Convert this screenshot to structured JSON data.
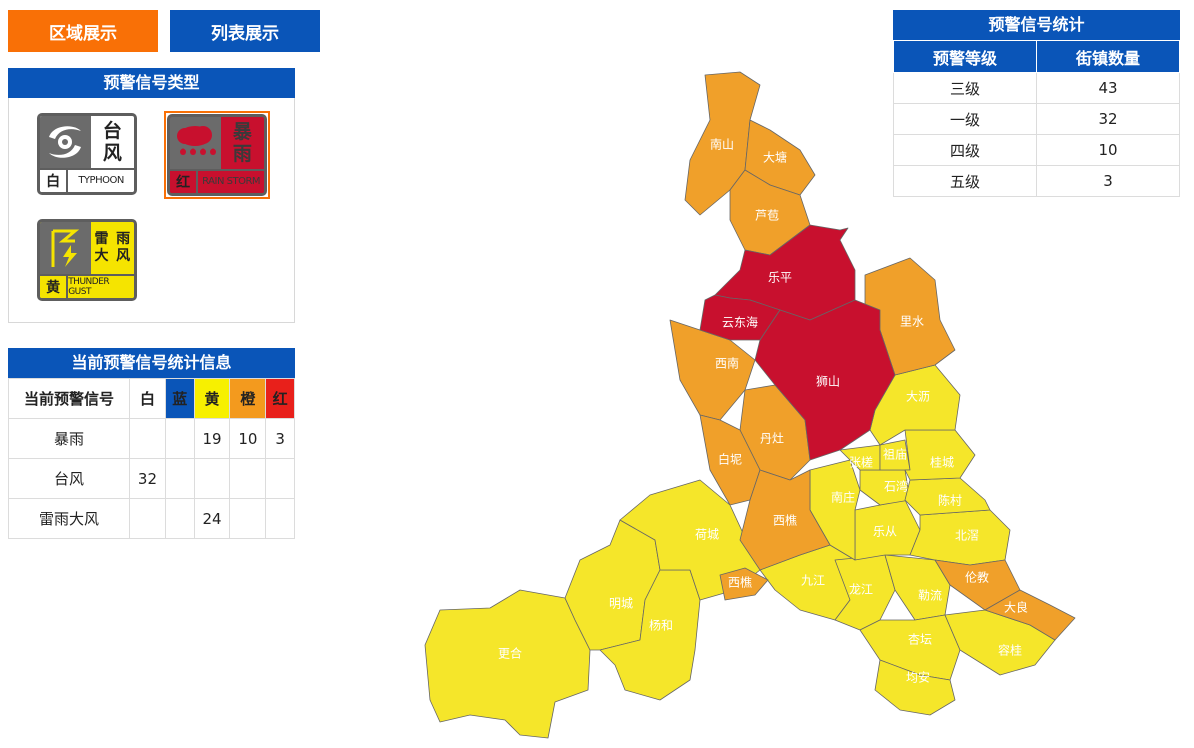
{
  "tabs": {
    "region": "区域展示",
    "list": "列表展示"
  },
  "types_panel": {
    "title": "预警信号类型",
    "icons": [
      {
        "name": "typhoon",
        "cn1": "台",
        "cn2": "风",
        "level": "白",
        "en": "TYPHOON"
      },
      {
        "name": "rainstorm",
        "cn1": "暴",
        "cn2": "雨",
        "level": "红",
        "en": "RAIN STORM"
      },
      {
        "name": "thunder-gust",
        "cn": [
          "雷",
          "雨",
          "大",
          "风"
        ],
        "level": "黄",
        "en": "THUNDER GUST"
      }
    ]
  },
  "stats_panel": {
    "title": "当前预警信号统计信息",
    "headers": [
      "当前预警信号",
      "白",
      "蓝",
      "黄",
      "橙",
      "红"
    ],
    "rows": [
      [
        "暴雨",
        "",
        "",
        "19",
        "10",
        "3"
      ],
      [
        "台风",
        "32",
        "",
        "",
        "",
        ""
      ],
      [
        "雷雨大风",
        "",
        "",
        "24",
        "",
        ""
      ]
    ]
  },
  "count_panel": {
    "title": "预警信号统计",
    "headers": [
      "预警等级",
      "街镇数量"
    ],
    "rows": [
      [
        "三级",
        "43"
      ],
      [
        "一级",
        "32"
      ],
      [
        "四级",
        "10"
      ],
      [
        "五级",
        "3"
      ]
    ]
  },
  "colors": {
    "red": "#c8102e",
    "orange": "#f0a02a",
    "yellow": "#f5e62a",
    "blue": "#0a55b8",
    "tab_active": "#f97006"
  },
  "map": {
    "labels": {
      "nanshan": "南山",
      "datang": "大塘",
      "luba": "芦苞",
      "leping": "乐平",
      "yundonghai": "云东海",
      "lishui": "里水",
      "xinan": "西南",
      "shishan": "狮山",
      "dali": "大沥",
      "danzao": "丹灶",
      "baini": "白坭",
      "zhangcha": "张槎",
      "zumiao": "祖庙",
      "guicheng": "桂城",
      "nanzhuang": "南庄",
      "shiwan": "石湾",
      "chencun": "陈村",
      "xiqiao": "西樵",
      "hecheng": "荷城",
      "lecong": "乐从",
      "beijiao": "北滘",
      "jiujiang": "九江",
      "xiqiao2": "西樵",
      "longjiang": "龙江",
      "lunjiao": "伦教",
      "mingcheng": "明城",
      "lelliu": "勒流",
      "daliang": "大良",
      "yanghe": "杨和",
      "gengne": "更合",
      "xingtan": "杏坛",
      "ronggui": "容桂",
      "junan": "均安"
    }
  }
}
